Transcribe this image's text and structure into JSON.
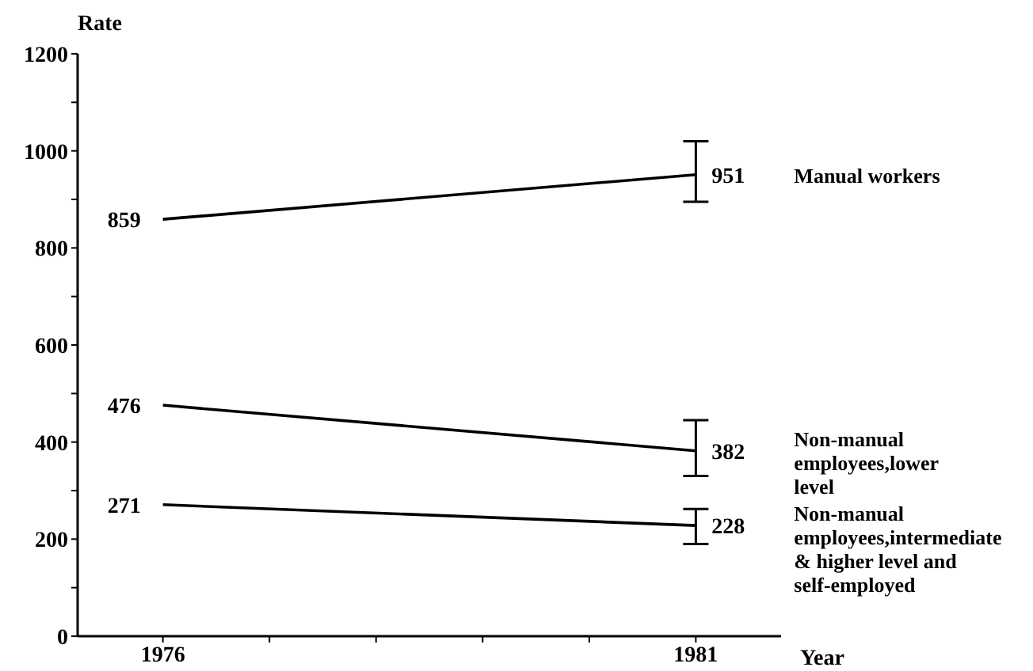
{
  "chart_data": {
    "type": "line",
    "xlabel": "Year",
    "ylabel": "Rate",
    "x": [
      1976,
      1981
    ],
    "series": [
      {
        "name": "Manual workers",
        "color": "#000000",
        "values": [
          859,
          951
        ],
        "errors": [
          null,
          [
            895,
            1020
          ]
        ]
      },
      {
        "name": "Non-manual employees,lower level",
        "color": "#000000",
        "values": [
          476,
          382
        ],
        "errors": [
          null,
          [
            330,
            445
          ]
        ]
      },
      {
        "name": "Non-manual employees,intermediate & higher level and self-employed",
        "color": "#000000",
        "values": [
          271,
          228
        ],
        "errors": [
          null,
          [
            190,
            262
          ]
        ]
      }
    ],
    "xlim": [
      1975.2,
      1981.8
    ],
    "xticks": [
      1976,
      {
        "value": 1977,
        "label": null
      },
      {
        "value": 1978,
        "label": null
      },
      {
        "value": 1979,
        "label": null
      },
      {
        "value": 1980,
        "label": null
      },
      1981
    ],
    "ylim": [
      0,
      1200
    ],
    "yticks": [
      0,
      {
        "value": 100,
        "label": null
      },
      200,
      {
        "value": 300,
        "label": null
      },
      400,
      {
        "value": 500,
        "label": null
      },
      600,
      {
        "value": 700,
        "label": null
      },
      800,
      {
        "value": 900,
        "label": null
      },
      1000,
      {
        "value": 1100,
        "label": null
      },
      1200
    ],
    "data_labels": true,
    "grid": false,
    "legend": false,
    "marker": "none"
  }
}
